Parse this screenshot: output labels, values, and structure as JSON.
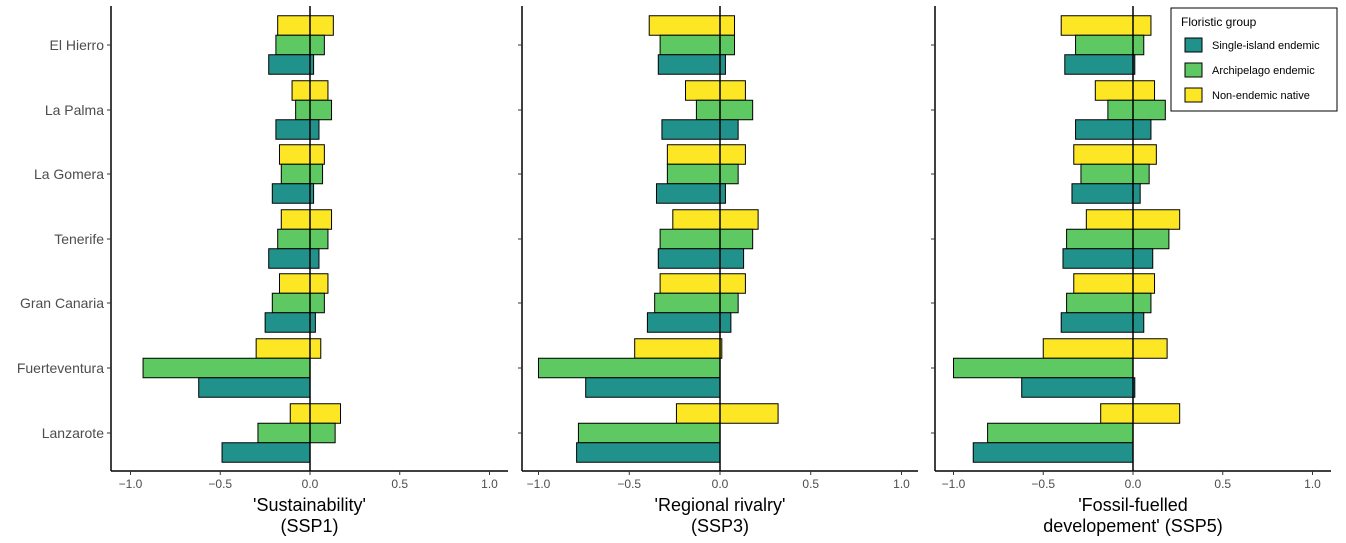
{
  "chart_data": {
    "type": "bar",
    "orientation": "horizontal",
    "categories": [
      "El Hierro",
      "La Palma",
      "La Gomera",
      "Tenerife",
      "Gran Canaria",
      "Fuerteventura",
      "Lanzarote"
    ],
    "xlim": [
      -1.0,
      1.0
    ],
    "xticks": [
      {
        "value": -1.0,
        "label": "−1.0"
      },
      {
        "value": -0.5,
        "label": "−0.5"
      },
      {
        "value": 0.0,
        "label": "0.0"
      },
      {
        "value": 0.5,
        "label": "0.5"
      },
      {
        "value": 1.0,
        "label": "1.0"
      }
    ],
    "grid": false,
    "legend": {
      "title": "Floristic group",
      "position": "top-right",
      "items": [
        {
          "label": "Single-island endemic",
          "color": "#21918c"
        },
        {
          "label": "Archipelago endemic",
          "color": "#5ec962"
        },
        {
          "label": "Non-endemic native",
          "color": "#fde725"
        }
      ]
    },
    "panels": [
      {
        "title_line1": "'Sustainability'",
        "title_line2": "(SSP1)",
        "series": [
          {
            "name": "Non-endemic native",
            "color": "#fde725",
            "bars": [
              [
                -0.18,
                0.13
              ],
              [
                -0.1,
                0.1
              ],
              [
                -0.17,
                0.08
              ],
              [
                -0.16,
                0.12
              ],
              [
                -0.17,
                0.1
              ],
              [
                -0.3,
                0.06
              ],
              [
                -0.11,
                0.17
              ]
            ]
          },
          {
            "name": "Archipelago endemic",
            "color": "#5ec962",
            "bars": [
              [
                -0.19,
                0.08
              ],
              [
                -0.08,
                0.12
              ],
              [
                -0.16,
                0.07
              ],
              [
                -0.18,
                0.1
              ],
              [
                -0.21,
                0.08
              ],
              [
                -0.93,
                0.0
              ],
              [
                -0.29,
                0.14
              ]
            ]
          },
          {
            "name": "Single-island endemic",
            "color": "#21918c",
            "bars": [
              [
                -0.23,
                0.02
              ],
              [
                -0.19,
                0.05
              ],
              [
                -0.21,
                0.02
              ],
              [
                -0.23,
                0.05
              ],
              [
                -0.25,
                0.03
              ],
              [
                -0.62,
                0.0
              ],
              [
                -0.49,
                0.0
              ]
            ]
          }
        ]
      },
      {
        "title_line1": "'Regional rivalry'",
        "title_line2": "(SSP3)",
        "series": [
          {
            "name": "Non-endemic native",
            "color": "#fde725",
            "bars": [
              [
                -0.39,
                0.08
              ],
              [
                -0.19,
                0.14
              ],
              [
                -0.29,
                0.14
              ],
              [
                -0.26,
                0.21
              ],
              [
                -0.33,
                0.14
              ],
              [
                -0.47,
                0.01
              ],
              [
                -0.24,
                0.32
              ]
            ]
          },
          {
            "name": "Archipelago endemic",
            "color": "#5ec962",
            "bars": [
              [
                -0.33,
                0.08
              ],
              [
                -0.13,
                0.18
              ],
              [
                -0.29,
                0.1
              ],
              [
                -0.33,
                0.18
              ],
              [
                -0.36,
                0.1
              ],
              [
                -1.0,
                0.0
              ],
              [
                -0.78,
                0.0
              ]
            ]
          },
          {
            "name": "Single-island endemic",
            "color": "#21918c",
            "bars": [
              [
                -0.34,
                0.03
              ],
              [
                -0.32,
                0.1
              ],
              [
                -0.35,
                0.03
              ],
              [
                -0.34,
                0.13
              ],
              [
                -0.4,
                0.06
              ],
              [
                -0.74,
                0.0
              ],
              [
                -0.79,
                0.0
              ]
            ]
          }
        ]
      },
      {
        "title_line1": "'Fossil-fuelled",
        "title_line2": "developement' (SSP5)",
        "series": [
          {
            "name": "Non-endemic native",
            "color": "#fde725",
            "bars": [
              [
                -0.4,
                0.1
              ],
              [
                -0.21,
                0.12
              ],
              [
                -0.33,
                0.13
              ],
              [
                -0.26,
                0.26
              ],
              [
                -0.33,
                0.12
              ],
              [
                -0.5,
                0.19
              ],
              [
                -0.18,
                0.26
              ]
            ]
          },
          {
            "name": "Archipelago endemic",
            "color": "#5ec962",
            "bars": [
              [
                -0.32,
                0.06
              ],
              [
                -0.14,
                0.18
              ],
              [
                -0.29,
                0.09
              ],
              [
                -0.37,
                0.2
              ],
              [
                -0.37,
                0.1
              ],
              [
                -1.0,
                0.0
              ],
              [
                -0.81,
                0.0
              ]
            ]
          },
          {
            "name": "Single-island endemic",
            "color": "#21918c",
            "bars": [
              [
                -0.38,
                0.01
              ],
              [
                -0.32,
                0.1
              ],
              [
                -0.34,
                0.04
              ],
              [
                -0.39,
                0.11
              ],
              [
                -0.4,
                0.06
              ],
              [
                -0.62,
                0.01
              ],
              [
                -0.89,
                0.0
              ]
            ]
          }
        ]
      }
    ]
  }
}
